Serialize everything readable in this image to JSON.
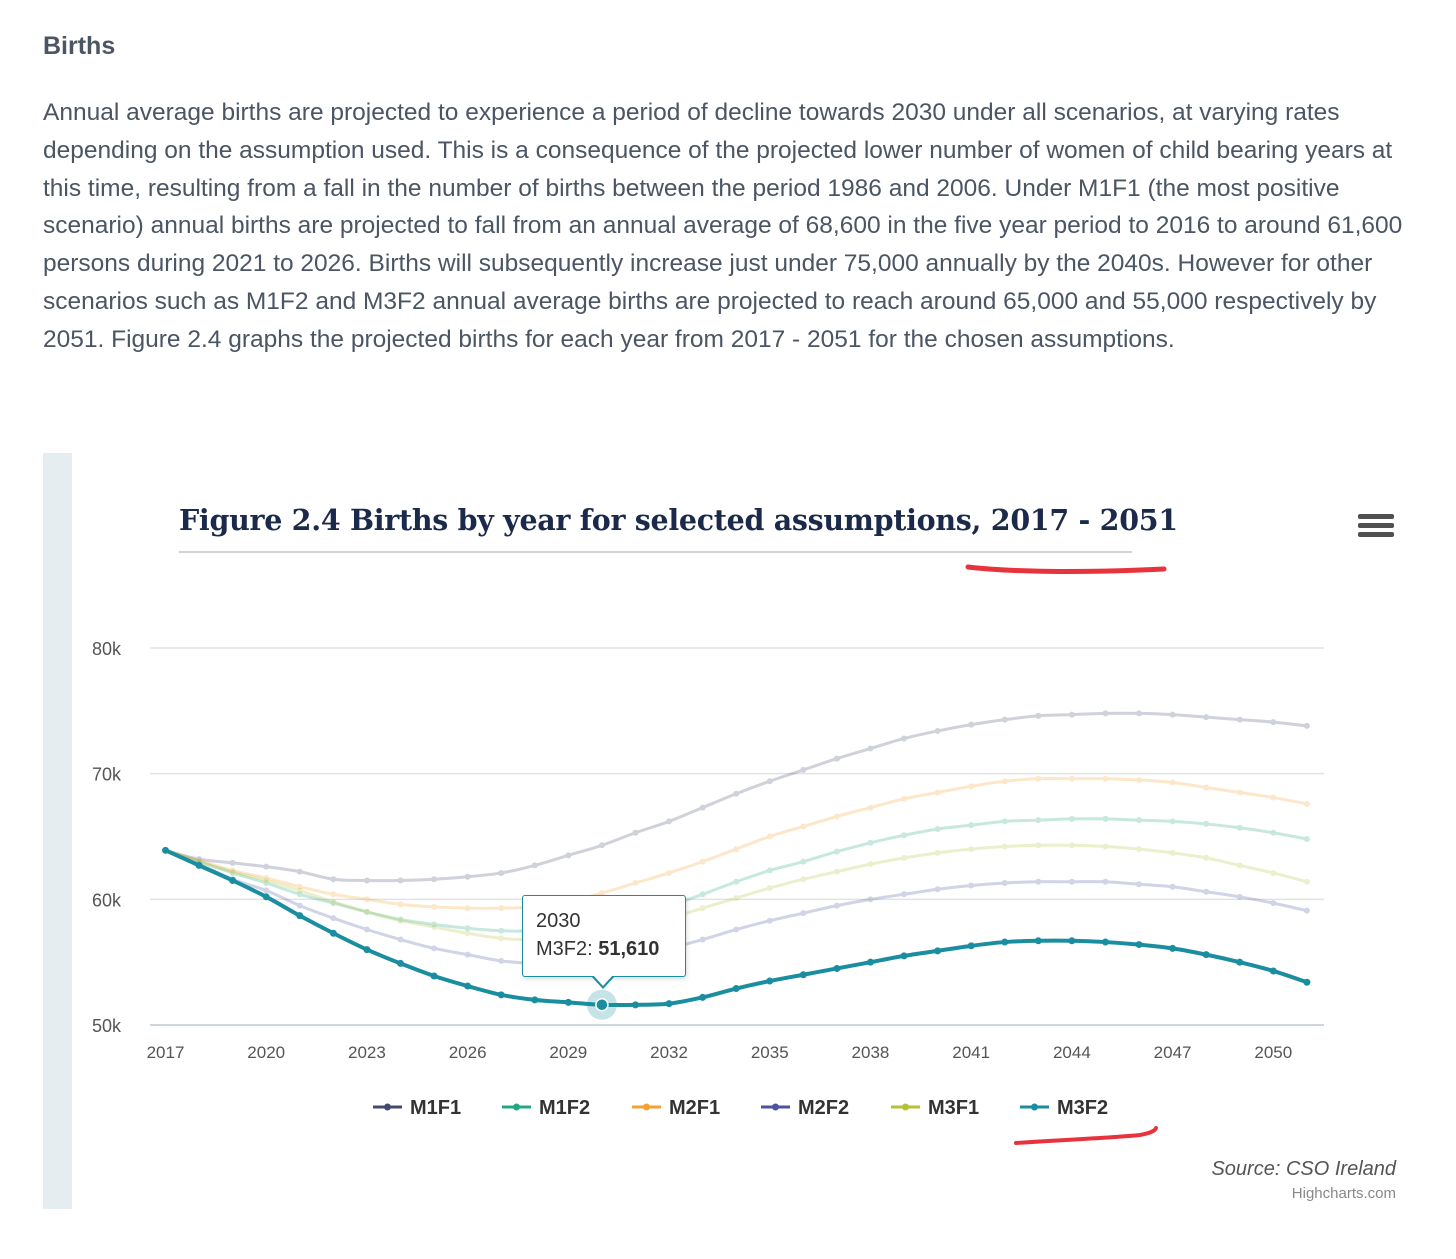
{
  "section": {
    "heading": "Births",
    "paragraph": "Annual average births are projected to experience a period of decline towards 2030 under all scenarios, at varying rates depending on the assumption used.  This is a consequence of the projected lower number of women of child bearing years at this time, resulting from a fall in the number of births between the period 1986 and 2006.  Under M1F1 (the most positive scenario) annual births are projected to fall from an annual average of 68,600 in the five year period to 2016 to around 61,600 persons during 2021 to 2026.  Births will subsequently increase just under 75,000 annually by the 2040s.  However for other scenarios such as M1F2 and M3F2 annual average births are projected to reach around 65,000 and 55,000 respectively by 2051.  Figure 2.4 graphs the projected births for each year from 2017 - 2051 for the chosen assumptions."
  },
  "source": {
    "text": "Source: CSO Ireland",
    "credit": "Highcharts.com"
  },
  "tooltip": {
    "year": "2030",
    "series": "M3F2",
    "value": "51,610"
  },
  "chart_data": {
    "type": "line",
    "title": "Figure 2.4 Births by year for selected assumptions, 2017 - 2051",
    "xlabel": "",
    "ylabel": "",
    "xlim": [
      2017,
      2051
    ],
    "ylim": [
      50000,
      80000
    ],
    "y_ticks": [
      50000,
      60000,
      70000,
      80000
    ],
    "y_tick_labels": [
      "50k",
      "60k",
      "70k",
      "80k"
    ],
    "x_ticks": [
      2017,
      2020,
      2023,
      2026,
      2029,
      2032,
      2035,
      2038,
      2041,
      2044,
      2047,
      2050
    ],
    "grid": true,
    "legend_position": "bottom-center",
    "highlighted_series": "M3F2",
    "x": [
      2017,
      2018,
      2019,
      2020,
      2021,
      2022,
      2023,
      2024,
      2025,
      2026,
      2027,
      2028,
      2029,
      2030,
      2031,
      2032,
      2033,
      2034,
      2035,
      2036,
      2037,
      2038,
      2039,
      2040,
      2041,
      2042,
      2043,
      2044,
      2045,
      2046,
      2047,
      2048,
      2049,
      2050,
      2051
    ],
    "series": [
      {
        "name": "M1F1",
        "color": "#434a72",
        "values": [
          63900,
          63200,
          62900,
          62600,
          62200,
          61600,
          61500,
          61500,
          61600,
          61800,
          62100,
          62700,
          63500,
          64300,
          65300,
          66200,
          67300,
          68400,
          69400,
          70300,
          71200,
          72000,
          72800,
          73400,
          73900,
          74300,
          74600,
          74700,
          74800,
          74800,
          74700,
          74500,
          74300,
          74100,
          73800
        ]
      },
      {
        "name": "M1F2",
        "color": "#21a883",
        "values": [
          63900,
          63000,
          62100,
          61300,
          60400,
          59700,
          59000,
          58400,
          58000,
          57700,
          57500,
          57500,
          57700,
          58200,
          58800,
          59500,
          60400,
          61400,
          62300,
          63000,
          63800,
          64500,
          65100,
          65600,
          65900,
          66200,
          66300,
          66400,
          66400,
          66300,
          66200,
          66000,
          65700,
          65300,
          64800
        ]
      },
      {
        "name": "M2F1",
        "color": "#f4a232",
        "values": [
          63900,
          63100,
          62300,
          61700,
          61000,
          60400,
          60000,
          59600,
          59400,
          59300,
          59300,
          59400,
          59800,
          60500,
          61300,
          62100,
          63000,
          64000,
          65000,
          65800,
          66600,
          67300,
          68000,
          68500,
          69000,
          69400,
          69600,
          69600,
          69600,
          69500,
          69300,
          68900,
          68500,
          68100,
          67600
        ]
      },
      {
        "name": "M2F2",
        "color": "#4d52a3",
        "values": [
          63900,
          62800,
          61600,
          60700,
          59500,
          58500,
          57600,
          56800,
          56100,
          55600,
          55100,
          54900,
          54900,
          55200,
          55600,
          56100,
          56800,
          57600,
          58300,
          58900,
          59500,
          60000,
          60400,
          60800,
          61100,
          61300,
          61400,
          61400,
          61400,
          61200,
          61000,
          60600,
          60200,
          59700,
          59100
        ]
      },
      {
        "name": "M3F1",
        "color": "#b6c234",
        "values": [
          63900,
          63000,
          62200,
          61500,
          60700,
          59800,
          59000,
          58300,
          57800,
          57300,
          56900,
          56800,
          56900,
          57300,
          57800,
          58500,
          59300,
          60100,
          60900,
          61600,
          62200,
          62800,
          63300,
          63700,
          64000,
          64200,
          64300,
          64300,
          64200,
          64000,
          63700,
          63300,
          62700,
          62100,
          61400
        ]
      },
      {
        "name": "M3F2",
        "color": "#1a8ea0",
        "values": [
          63900,
          62700,
          61500,
          60200,
          58700,
          57300,
          56000,
          54900,
          53900,
          53100,
          52400,
          52000,
          51800,
          51610,
          51600,
          51700,
          52200,
          52900,
          53500,
          54000,
          54500,
          55000,
          55500,
          55900,
          56300,
          56600,
          56700,
          56700,
          56600,
          56400,
          56100,
          55600,
          55000,
          54300,
          53400
        ]
      }
    ]
  }
}
